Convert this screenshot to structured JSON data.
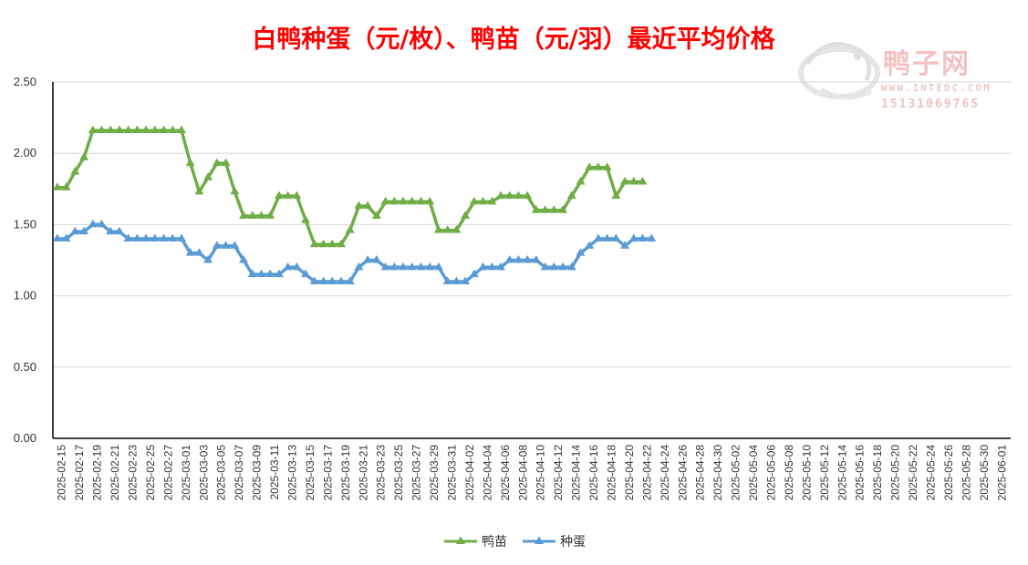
{
  "watermark": {
    "name": "鸭子网",
    "url": "WWW.INTEDC.COM",
    "phone": "15131069765"
  },
  "colors": {
    "duckling": "#70ad47",
    "egg": "#5b9bd5",
    "title": "#ff0000",
    "grid": "#d9d9d9",
    "axis": "#000000"
  },
  "chart_data": {
    "type": "line",
    "title": "白鸭种蛋（元/枚）、鸭苗（元/羽）最近平均价格",
    "xlabel": "",
    "ylabel": "",
    "ylim": [
      0,
      2.5
    ],
    "yticks": [
      "0.00",
      "0.50",
      "1.00",
      "1.50",
      "2.00",
      "2.50"
    ],
    "grid": true,
    "legend_position": "bottom",
    "x_start": "2025-02-15",
    "x_end": "2025-06-02",
    "x_tick_labels": [
      "2025-02-15",
      "2025-02-17",
      "2025-02-19",
      "2025-02-21",
      "2025-02-23",
      "2025-02-25",
      "2025-02-27",
      "2025-03-01",
      "2025-03-03",
      "2025-03-05",
      "2025-03-07",
      "2025-03-09",
      "2025-03-11",
      "2025-03-13",
      "2025-03-15",
      "2025-03-17",
      "2025-03-19",
      "2025-03-21",
      "2025-03-23",
      "2025-03-25",
      "2025-03-27",
      "2025-03-29",
      "2025-03-31",
      "2025-04-02",
      "2025-04-04",
      "2025-04-06",
      "2025-04-08",
      "2025-04-10",
      "2025-04-12",
      "2025-04-14",
      "2025-04-16",
      "2025-04-18",
      "2025-04-20",
      "2025-04-22",
      "2025-04-24",
      "2025-04-26",
      "2025-04-28",
      "2025-04-30",
      "2025-05-02",
      "2025-05-04",
      "2025-05-06",
      "2025-05-08",
      "2025-05-10",
      "2025-05-12",
      "2025-05-14",
      "2025-05-16",
      "2025-05-18",
      "2025-05-20",
      "2025-05-22",
      "2025-05-24",
      "2025-05-26",
      "2025-05-28",
      "2025-05-30",
      "2025-06-01"
    ],
    "series": [
      {
        "name": "鸭苗",
        "color": "#70ad47",
        "values": [
          1.76,
          1.76,
          1.87,
          1.97,
          2.16,
          2.16,
          2.16,
          2.16,
          2.16,
          2.16,
          2.16,
          2.16,
          2.16,
          2.16,
          2.16,
          1.93,
          1.73,
          1.83,
          1.93,
          1.93,
          1.73,
          1.56,
          1.56,
          1.56,
          1.56,
          1.7,
          1.7,
          1.7,
          1.53,
          1.36,
          1.36,
          1.36,
          1.36,
          1.46,
          1.63,
          1.63,
          1.56,
          1.66,
          1.66,
          1.66,
          1.66,
          1.66,
          1.66,
          1.46,
          1.46,
          1.46,
          1.56,
          1.66,
          1.66,
          1.66,
          1.7,
          1.7,
          1.7,
          1.7,
          1.6,
          1.6,
          1.6,
          1.6,
          1.7,
          1.8,
          1.9,
          1.9,
          1.9,
          1.7,
          1.8,
          1.8,
          1.8
        ]
      },
      {
        "name": "种蛋",
        "color": "#5b9bd5",
        "values": [
          1.4,
          1.4,
          1.45,
          1.45,
          1.5,
          1.5,
          1.45,
          1.45,
          1.4,
          1.4,
          1.4,
          1.4,
          1.4,
          1.4,
          1.4,
          1.3,
          1.3,
          1.25,
          1.35,
          1.35,
          1.35,
          1.25,
          1.15,
          1.15,
          1.15,
          1.15,
          1.2,
          1.2,
          1.15,
          1.1,
          1.1,
          1.1,
          1.1,
          1.1,
          1.2,
          1.25,
          1.25,
          1.2,
          1.2,
          1.2,
          1.2,
          1.2,
          1.2,
          1.2,
          1.1,
          1.1,
          1.1,
          1.15,
          1.2,
          1.2,
          1.2,
          1.25,
          1.25,
          1.25,
          1.25,
          1.2,
          1.2,
          1.2,
          1.2,
          1.3,
          1.35,
          1.4,
          1.4,
          1.4,
          1.35,
          1.4,
          1.4,
          1.4
        ]
      }
    ]
  }
}
